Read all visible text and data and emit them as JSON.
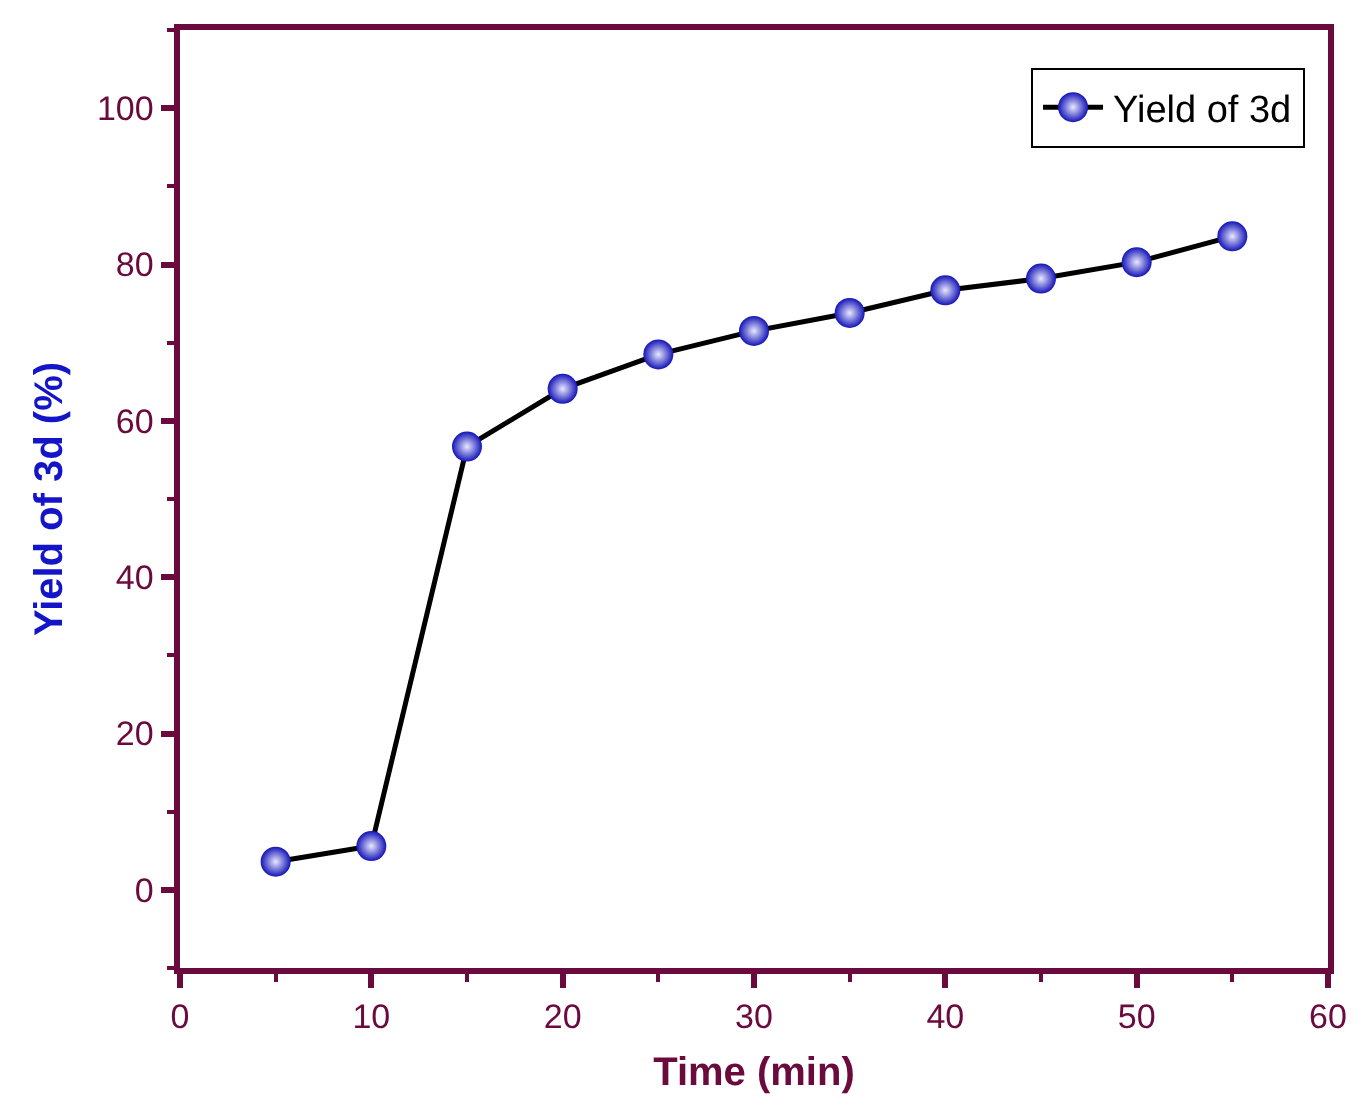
{
  "chart_data": {
    "type": "line",
    "xlabel": "Time (min)",
    "ylabel": "Yield of 3d (%)",
    "x": [
      5,
      10,
      15,
      20,
      25,
      30,
      35,
      40,
      45,
      50,
      55
    ],
    "series": [
      {
        "name": "Yield of 3d",
        "color": "#1414b8",
        "values": [
          3.6,
          5.6,
          56.7,
          64.1,
          68.5,
          71.5,
          73.8,
          76.7,
          78.2,
          80.3,
          83.6
        ]
      }
    ],
    "xlim": [
      0,
      60
    ],
    "xticks": [
      0,
      10,
      20,
      30,
      40,
      50,
      60
    ],
    "ylim": [
      -10,
      110
    ],
    "yticks": [
      0,
      20,
      40,
      60,
      80,
      100
    ],
    "marker": "circle",
    "line_style": "solid",
    "legend": "top right",
    "grid": false
  }
}
